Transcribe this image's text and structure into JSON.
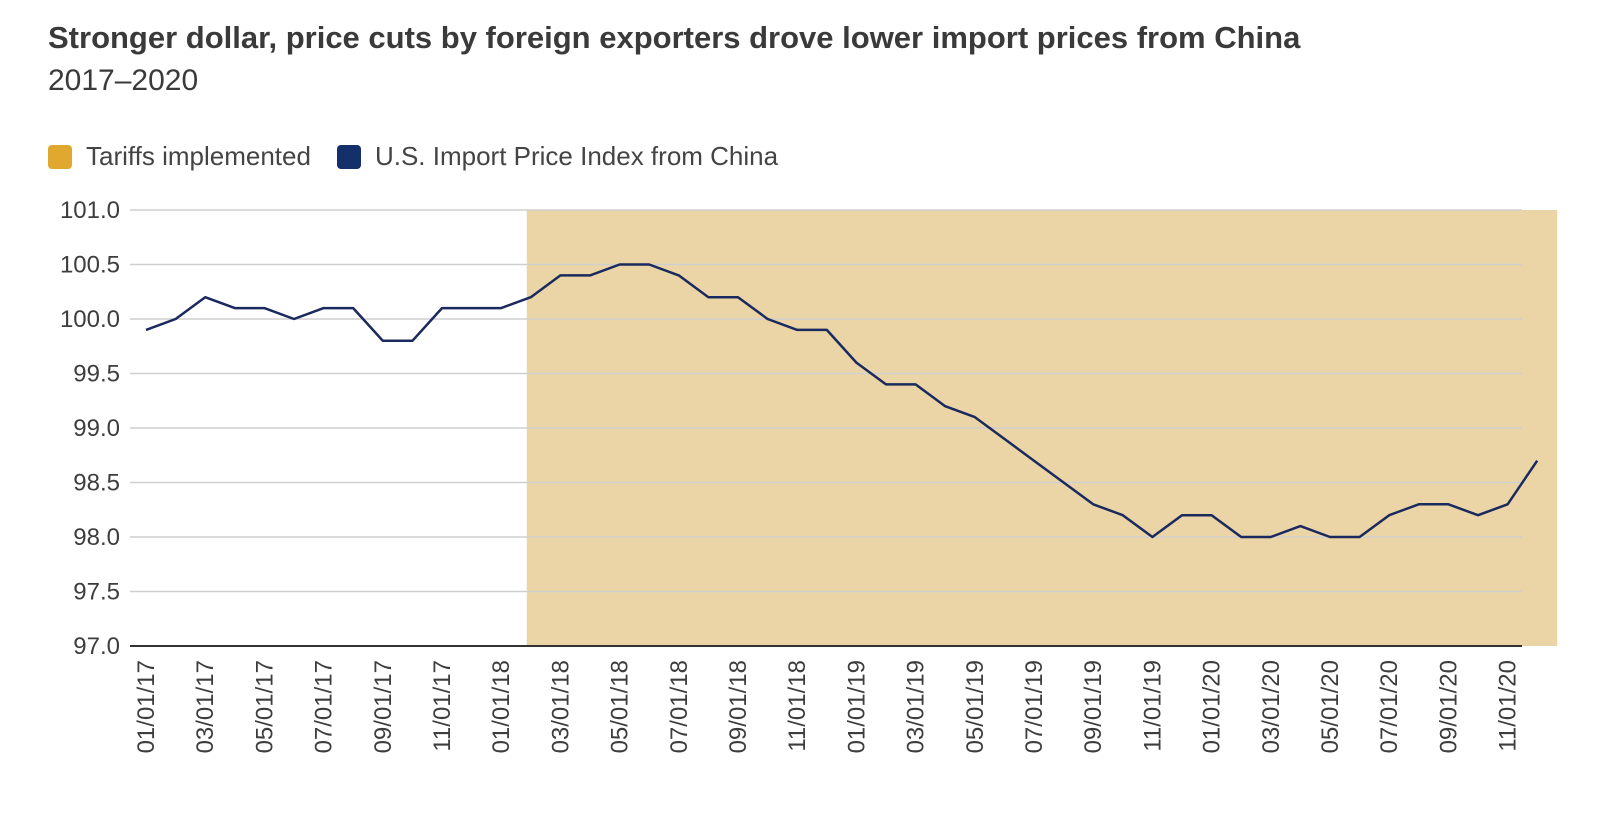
{
  "title": "Stronger dollar, price cuts by foreign exporters drove lower import prices from China",
  "subtitle": "2017–2020",
  "colors": {
    "tariff": "#e0a82e",
    "tariff_fill": "#ebd5a6",
    "series": "#1b2a5e",
    "grid": "#cfcfcf"
  },
  "legend": [
    {
      "label": "Tariffs implemented",
      "color": "#e0a82e"
    },
    {
      "label": "U.S. Import Price Index from China",
      "color": "#13306b"
    }
  ],
  "chart_data": {
    "type": "line",
    "title": "Stronger dollar, price cuts by foreign exporters drove lower import prices from China",
    "subtitle": "2017–2020",
    "xlabel": "",
    "ylabel": "",
    "ylim": [
      97.0,
      101.0
    ],
    "yticks": [
      "101.0",
      "100.5",
      "100.0",
      "99.5",
      "99.0",
      "98.5",
      "98.0",
      "97.5",
      "97.0"
    ],
    "xtick_labels": [
      "01/01/17",
      "03/01/17",
      "05/01/17",
      "07/01/17",
      "09/01/17",
      "11/01/17",
      "01/01/18",
      "03/01/18",
      "05/01/18",
      "07/01/18",
      "09/01/18",
      "11/01/18",
      "01/01/19",
      "03/01/19",
      "05/01/19",
      "07/01/19",
      "09/01/19",
      "11/01/19",
      "01/01/20",
      "03/01/20",
      "05/01/20",
      "07/01/20",
      "09/01/20",
      "11/01/20"
    ],
    "shaded_region": {
      "label": "Tariffs implemented",
      "start": "2018-02",
      "end": "2020-12",
      "ymax": 101.0
    },
    "x": [
      "2017-01",
      "2017-02",
      "2017-03",
      "2017-04",
      "2017-05",
      "2017-06",
      "2017-07",
      "2017-08",
      "2017-09",
      "2017-10",
      "2017-11",
      "2017-12",
      "2018-01",
      "2018-02",
      "2018-03",
      "2018-04",
      "2018-05",
      "2018-06",
      "2018-07",
      "2018-08",
      "2018-09",
      "2018-10",
      "2018-11",
      "2018-12",
      "2019-01",
      "2019-02",
      "2019-03",
      "2019-04",
      "2019-05",
      "2019-06",
      "2019-07",
      "2019-08",
      "2019-09",
      "2019-10",
      "2019-11",
      "2019-12",
      "2020-01",
      "2020-02",
      "2020-03",
      "2020-04",
      "2020-05",
      "2020-06",
      "2020-07",
      "2020-08",
      "2020-09",
      "2020-10",
      "2020-11",
      "2020-12"
    ],
    "series": [
      {
        "name": "U.S. Import Price Index from China",
        "values": [
          99.9,
          100.0,
          100.2,
          100.1,
          100.1,
          100.0,
          100.1,
          100.1,
          99.8,
          99.8,
          100.1,
          100.1,
          100.1,
          100.2,
          100.4,
          100.4,
          100.5,
          100.5,
          100.4,
          100.2,
          100.2,
          100.0,
          99.9,
          99.9,
          99.6,
          99.4,
          99.4,
          99.2,
          99.1,
          98.9,
          98.7,
          98.5,
          98.3,
          98.2,
          98.0,
          98.2,
          98.2,
          98.0,
          98.0,
          98.1,
          98.0,
          98.0,
          98.2,
          98.3,
          98.3,
          98.2,
          98.3,
          98.7
        ]
      }
    ],
    "grid": true,
    "legend_position": "top-left"
  }
}
